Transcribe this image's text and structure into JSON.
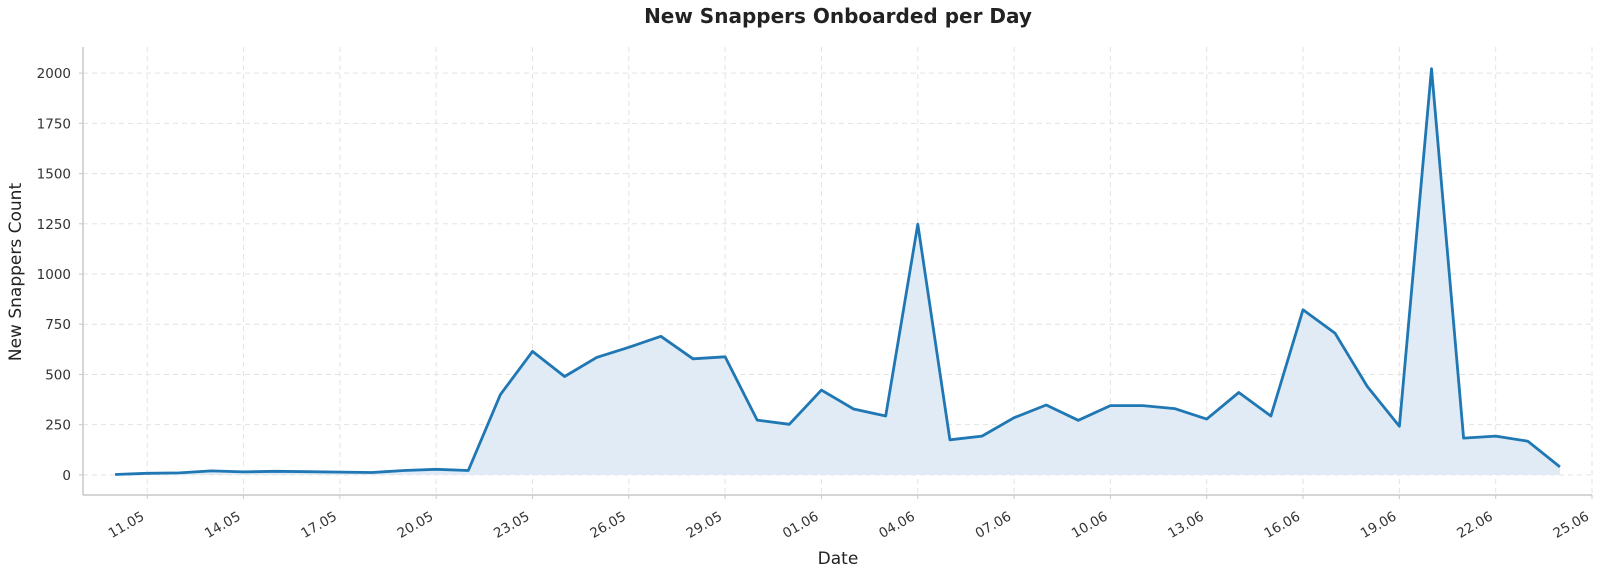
{
  "chart_data": {
    "type": "area",
    "title": "New Snappers Onboarded per Day",
    "xlabel": "Date",
    "ylabel": "New Snappers Count",
    "x": [
      "2024-05-10",
      "2024-05-11",
      "2024-05-12",
      "2024-05-13",
      "2024-05-14",
      "2024-05-15",
      "2024-05-16",
      "2024-05-17",
      "2024-05-18",
      "2024-05-19",
      "2024-05-20",
      "2024-05-21",
      "2024-05-22",
      "2024-05-23",
      "2024-05-24",
      "2024-05-25",
      "2024-05-26",
      "2024-05-27",
      "2024-05-28",
      "2024-05-29",
      "2024-05-30",
      "2024-05-31",
      "2024-06-01",
      "2024-06-02",
      "2024-06-03",
      "2024-06-04",
      "2024-06-05",
      "2024-06-06",
      "2024-06-07",
      "2024-06-08",
      "2024-06-09",
      "2024-06-10",
      "2024-06-11",
      "2024-06-12",
      "2024-06-13",
      "2024-06-14",
      "2024-06-15",
      "2024-06-16",
      "2024-06-17",
      "2024-06-18",
      "2024-06-19",
      "2024-06-20",
      "2024-06-21",
      "2024-06-22",
      "2024-06-23",
      "2024-06-24"
    ],
    "series": [
      {
        "values": [
          2,
          8,
          10,
          20,
          15,
          18,
          16,
          14,
          12,
          22,
          28,
          22,
          400,
          615,
          490,
          585,
          635,
          690,
          578,
          588,
          273,
          252,
          422,
          328,
          293,
          1248,
          175,
          193,
          285,
          348,
          272,
          345,
          345,
          330,
          278,
          410,
          293,
          822,
          705,
          440,
          242,
          2022,
          183,
          193,
          168,
          40
        ],
        "color": "#1f77b4",
        "fill_color": "#dde9f4"
      }
    ],
    "x_tick_labels": [
      "11.05",
      "14.05",
      "17.05",
      "20.05",
      "23.05",
      "26.05",
      "29.05",
      "01.06",
      "04.06",
      "07.06",
      "10.06",
      "13.06",
      "16.06",
      "19.06",
      "22.06",
      "25.06"
    ],
    "x_tick_dates": [
      "2024-05-11",
      "2024-05-14",
      "2024-05-17",
      "2024-05-20",
      "2024-05-23",
      "2024-05-26",
      "2024-05-29",
      "2024-06-01",
      "2024-06-04",
      "2024-06-07",
      "2024-06-10",
      "2024-06-13",
      "2024-06-16",
      "2024-06-19",
      "2024-06-22",
      "2024-06-25"
    ],
    "y_ticks": [
      0,
      250,
      500,
      750,
      1000,
      1250,
      1500,
      1750,
      2000
    ],
    "xlim": [
      "2024-05-09",
      "2024-06-25"
    ],
    "ylim": [
      -100,
      2130
    ],
    "grid": true
  }
}
